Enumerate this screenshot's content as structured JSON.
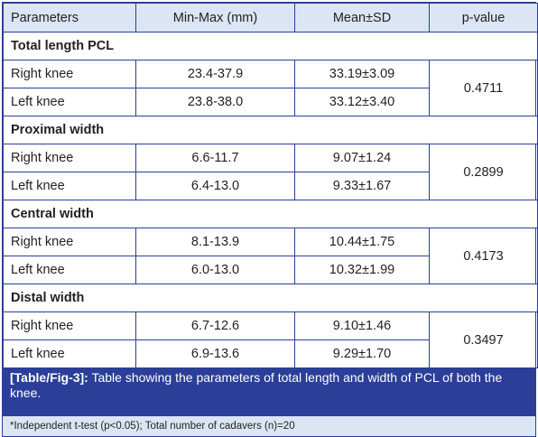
{
  "table": {
    "headers": [
      "Parameters",
      "Min-Max (mm)",
      "Mean±SD",
      "p-value"
    ],
    "sections": [
      {
        "title": "Total length PCL",
        "rows": [
          {
            "label": "Right knee",
            "minmax": "23.4-37.9",
            "mean": "33.19±3.09"
          },
          {
            "label": "Left knee",
            "minmax": "23.8-38.0",
            "mean": "33.12±3.40"
          }
        ],
        "p": "0.4711"
      },
      {
        "title": "Proximal width",
        "rows": [
          {
            "label": "Right knee",
            "minmax": "6.6-11.7",
            "mean": "9.07±1.24"
          },
          {
            "label": "Left knee",
            "minmax": "6.4-13.0",
            "mean": "9.33±1.67"
          }
        ],
        "p": "0.2899"
      },
      {
        "title": "Central width",
        "rows": [
          {
            "label": "Right knee",
            "minmax": "8.1-13.9",
            "mean": "10.44±1.75"
          },
          {
            "label": "Left knee",
            "minmax": "6.0-13.0",
            "mean": "10.32±1.99"
          }
        ],
        "p": "0.4173"
      },
      {
        "title": "Distal width",
        "rows": [
          {
            "label": "Right knee",
            "minmax": "6.7-12.6",
            "mean": "9.10±1.46"
          },
          {
            "label": "Left knee",
            "minmax": "6.9-13.6",
            "mean": "9.29±1.70"
          }
        ],
        "p": "0.3497"
      }
    ]
  },
  "caption": {
    "tag": "[Table/Fig-3]:",
    "text": " Table showing the parameters of total length and width of PCL of both the knee."
  },
  "footnote": "*Independent t-test (p<0.05); Total number of cadavers (n)=20",
  "colors": {
    "accent": "#2b3f99",
    "header_bg": "#dbe5f4"
  }
}
